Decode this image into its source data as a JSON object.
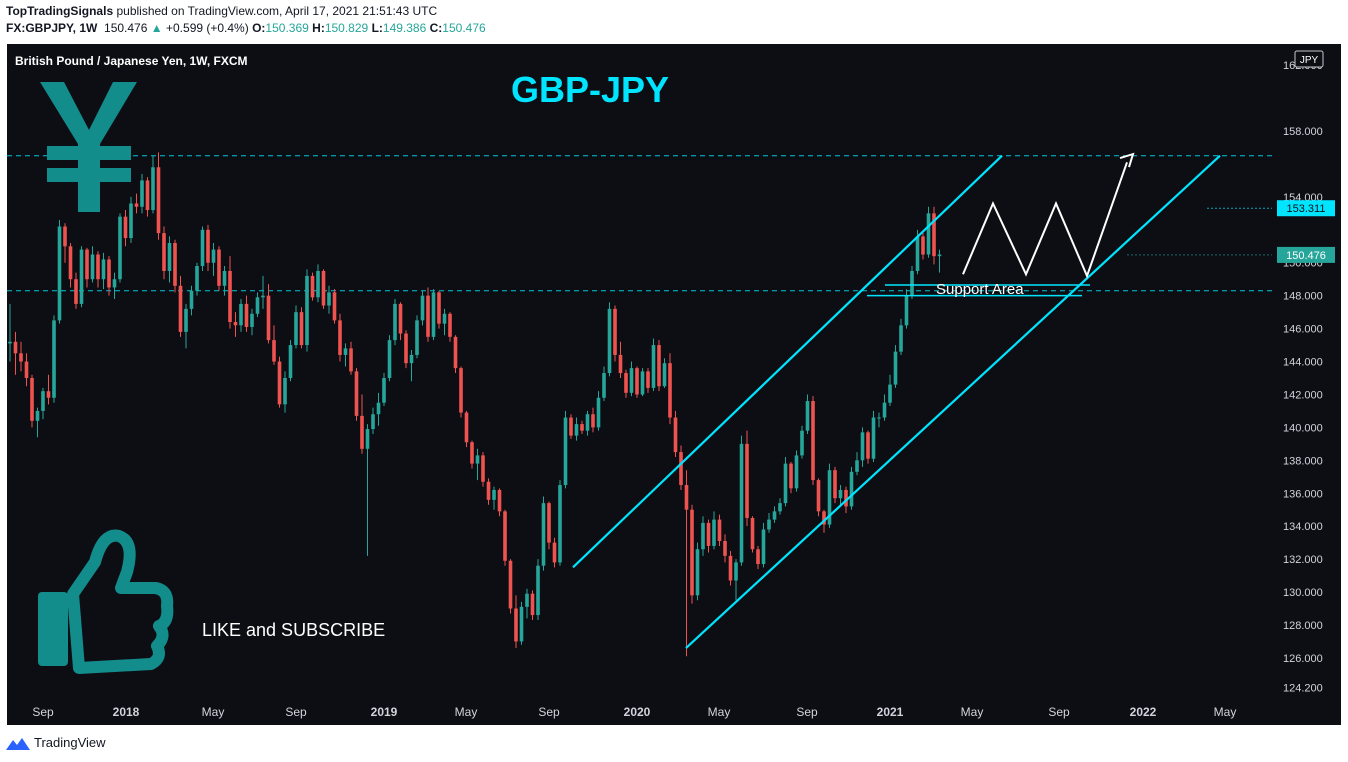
{
  "header": {
    "author": "TopTradingSignals",
    "published_text": "published on TradingView.com, April 17, 2021 21:51:43 UTC",
    "symbol": "FX:GBPJPY, 1W",
    "last": "150.476",
    "change": "+0.599 (+0.4%)",
    "open_label": "O:",
    "open": "150.369",
    "high_label": "H:",
    "high": "150.829",
    "low_label": "L:",
    "low": "149.386",
    "close_label": "C:",
    "close": "150.476"
  },
  "chart_data": {
    "type": "candlestick",
    "title": "GBP-JPY",
    "instrument": "British Pound / Japanese Yen, 1W, FXCM",
    "currency_badge": "JPY",
    "ylim": [
      123.2,
      162.8
    ],
    "x_tick_labels": [
      "Sep",
      "2018",
      "May",
      "Sep",
      "2019",
      "May",
      "Sep",
      "2020",
      "May",
      "Sep",
      "2021",
      "May",
      "Sep",
      "2022",
      "May"
    ],
    "y_tick_labels": [
      "162.000",
      "158.000",
      "154.000",
      "150.000",
      "148.000",
      "146.000",
      "144.000",
      "142.000",
      "140.000",
      "138.000",
      "136.000",
      "134.000",
      "132.000",
      "130.000",
      "128.000",
      "126.000",
      "124.200"
    ],
    "price_labels": [
      {
        "value": "153.311",
        "color": "#00e5ff"
      },
      {
        "value": "150.476",
        "color": "#26a69a"
      }
    ],
    "horizontal_levels": [
      156.5,
      148.3
    ],
    "annotations": {
      "support_label": "Support Area",
      "cta": "LIKE and SUBSCRIBE"
    },
    "colors": {
      "up": "#26a69a",
      "down": "#ef5350",
      "channel": "#00e5ff",
      "level": "#00e5ff",
      "title": "#00e5ff",
      "icon": "#138c8c",
      "projection": "#ffffff",
      "background": "#0d0e14"
    },
    "candles": [
      [
        145.1,
        147.5,
        144.0,
        145.2
      ],
      [
        145.2,
        145.8,
        143.2,
        144.5
      ],
      [
        144.5,
        145.2,
        143.4,
        144.0
      ],
      [
        144.0,
        144.5,
        142.5,
        143.0
      ],
      [
        143.0,
        143.2,
        140.0,
        140.4
      ],
      [
        140.4,
        141.2,
        139.4,
        141.0
      ],
      [
        141.0,
        142.4,
        140.5,
        142.2
      ],
      [
        142.2,
        143.2,
        141.4,
        141.8
      ],
      [
        141.8,
        146.8,
        141.5,
        146.5
      ],
      [
        146.5,
        152.6,
        146.3,
        152.2
      ],
      [
        152.2,
        152.4,
        150.0,
        151.0
      ],
      [
        151.0,
        151.2,
        148.5,
        149.0
      ],
      [
        149.0,
        149.4,
        147.2,
        147.5
      ],
      [
        147.5,
        151.0,
        147.3,
        150.8
      ],
      [
        150.8,
        150.9,
        148.5,
        149.0
      ],
      [
        149.0,
        151.0,
        148.8,
        150.5
      ],
      [
        150.5,
        150.7,
        148.5,
        149.0
      ],
      [
        149.0,
        150.6,
        148.4,
        150.2
      ],
      [
        150.2,
        150.4,
        148.0,
        148.5
      ],
      [
        148.5,
        149.4,
        147.8,
        149.0
      ],
      [
        149.0,
        153.0,
        148.8,
        152.8
      ],
      [
        152.8,
        153.2,
        151.0,
        151.5
      ],
      [
        151.5,
        154.0,
        151.2,
        153.6
      ],
      [
        153.6,
        154.2,
        153.0,
        153.4
      ],
      [
        153.4,
        155.4,
        153.0,
        155.0
      ],
      [
        155.0,
        155.2,
        152.8,
        153.2
      ],
      [
        153.2,
        156.5,
        153.0,
        155.8
      ],
      [
        155.8,
        156.7,
        151.4,
        151.8
      ],
      [
        151.8,
        152.2,
        149.0,
        149.5
      ],
      [
        149.5,
        151.6,
        148.8,
        151.2
      ],
      [
        151.2,
        151.4,
        148.2,
        148.6
      ],
      [
        148.6,
        149.2,
        145.5,
        145.8
      ],
      [
        145.8,
        147.5,
        144.8,
        147.2
      ],
      [
        147.2,
        148.6,
        146.8,
        148.3
      ],
      [
        148.3,
        150.0,
        148.0,
        149.8
      ],
      [
        149.8,
        152.2,
        149.5,
        152.0
      ],
      [
        152.0,
        152.3,
        149.5,
        150.0
      ],
      [
        150.0,
        151.2,
        149.2,
        150.8
      ],
      [
        150.8,
        151.0,
        148.3,
        148.6
      ],
      [
        148.6,
        149.8,
        148.0,
        149.5
      ],
      [
        149.5,
        150.4,
        146.0,
        146.4
      ],
      [
        146.4,
        147.0,
        145.5,
        146.2
      ],
      [
        146.2,
        147.8,
        145.8,
        147.5
      ],
      [
        147.5,
        148.0,
        145.8,
        146.1
      ],
      [
        146.1,
        147.2,
        145.6,
        146.9
      ],
      [
        146.9,
        148.2,
        146.7,
        147.9
      ],
      [
        147.9,
        149.2,
        147.2,
        148.0
      ],
      [
        148.0,
        148.7,
        145.1,
        145.3
      ],
      [
        145.3,
        146.2,
        143.8,
        144.0
      ],
      [
        144.0,
        144.3,
        141.2,
        141.4
      ],
      [
        141.4,
        143.4,
        140.9,
        143.0
      ],
      [
        143.0,
        145.3,
        142.8,
        145.0
      ],
      [
        145.0,
        147.4,
        144.8,
        147.0
      ],
      [
        147.0,
        147.3,
        144.8,
        145.0
      ],
      [
        145.0,
        149.6,
        144.6,
        149.2
      ],
      [
        149.2,
        149.4,
        147.7,
        147.9
      ],
      [
        147.9,
        149.9,
        147.6,
        149.5
      ],
      [
        149.5,
        149.6,
        147.2,
        147.4
      ],
      [
        147.4,
        148.6,
        146.9,
        148.2
      ],
      [
        148.2,
        148.4,
        146.3,
        146.5
      ],
      [
        146.5,
        146.9,
        144.0,
        144.4
      ],
      [
        144.4,
        145.1,
        143.7,
        144.8
      ],
      [
        144.8,
        145.2,
        143.2,
        143.4
      ],
      [
        143.4,
        143.6,
        140.4,
        140.7
      ],
      [
        140.7,
        142.0,
        138.4,
        138.7
      ],
      [
        138.7,
        140.2,
        132.2,
        139.9
      ],
      [
        139.9,
        141.2,
        139.6,
        140.8
      ],
      [
        140.8,
        142.1,
        140.1,
        141.5
      ],
      [
        141.5,
        143.3,
        141.3,
        143.0
      ],
      [
        143.0,
        145.6,
        142.8,
        145.3
      ],
      [
        145.3,
        147.8,
        145.0,
        147.5
      ],
      [
        147.5,
        147.6,
        145.3,
        145.7
      ],
      [
        145.7,
        145.9,
        143.6,
        143.9
      ],
      [
        143.9,
        144.7,
        142.8,
        144.4
      ],
      [
        144.4,
        146.8,
        144.2,
        146.5
      ],
      [
        146.5,
        148.3,
        146.2,
        148.0
      ],
      [
        148.0,
        148.5,
        145.2,
        145.5
      ],
      [
        145.5,
        148.4,
        145.3,
        148.2
      ],
      [
        148.2,
        148.3,
        146.0,
        146.3
      ],
      [
        146.3,
        147.2,
        145.6,
        146.9
      ],
      [
        146.9,
        147.0,
        145.2,
        145.5
      ],
      [
        145.5,
        145.6,
        143.3,
        143.6
      ],
      [
        143.6,
        143.7,
        140.6,
        140.9
      ],
      [
        140.9,
        141.0,
        138.8,
        139.1
      ],
      [
        139.1,
        139.2,
        137.5,
        137.8
      ],
      [
        137.8,
        138.7,
        136.8,
        138.3
      ],
      [
        138.3,
        138.5,
        136.4,
        136.7
      ],
      [
        136.7,
        136.9,
        135.3,
        135.6
      ],
      [
        135.6,
        136.4,
        135.0,
        136.2
      ],
      [
        136.2,
        136.3,
        134.6,
        134.9
      ],
      [
        134.9,
        135.0,
        131.6,
        131.9
      ],
      [
        131.9,
        132.0,
        128.7,
        129.0
      ],
      [
        129.0,
        129.8,
        126.6,
        127.0
      ],
      [
        127.0,
        129.4,
        126.8,
        129.1
      ],
      [
        129.1,
        130.2,
        128.4,
        129.9
      ],
      [
        129.9,
        130.1,
        128.3,
        128.6
      ],
      [
        128.6,
        132.0,
        128.3,
        131.6
      ],
      [
        131.6,
        135.8,
        131.3,
        135.4
      ],
      [
        135.4,
        135.5,
        132.6,
        133.0
      ],
      [
        133.0,
        133.3,
        131.5,
        131.8
      ],
      [
        131.8,
        136.8,
        131.6,
        136.5
      ],
      [
        136.5,
        141.0,
        136.3,
        140.6
      ],
      [
        140.6,
        140.8,
        139.3,
        139.5
      ],
      [
        139.5,
        140.6,
        139.2,
        140.2
      ],
      [
        140.2,
        140.4,
        139.6,
        139.8
      ],
      [
        139.8,
        141.0,
        139.5,
        140.8
      ],
      [
        140.8,
        141.2,
        139.7,
        140.0
      ],
      [
        140.0,
        142.2,
        139.8,
        141.8
      ],
      [
        141.8,
        143.7,
        141.6,
        143.3
      ],
      [
        143.3,
        147.6,
        143.1,
        147.2
      ],
      [
        147.2,
        147.4,
        144.0,
        144.4
      ],
      [
        144.4,
        145.2,
        143.0,
        143.3
      ],
      [
        143.3,
        143.5,
        141.8,
        142.1
      ],
      [
        142.1,
        144.0,
        141.9,
        143.6
      ],
      [
        143.6,
        143.7,
        141.8,
        142.0
      ],
      [
        142.0,
        143.6,
        141.9,
        143.4
      ],
      [
        143.4,
        143.6,
        142.1,
        142.4
      ],
      [
        142.4,
        145.4,
        142.2,
        145.0
      ],
      [
        145.0,
        145.3,
        142.2,
        142.5
      ],
      [
        142.5,
        144.2,
        142.4,
        143.9
      ],
      [
        143.9,
        144.5,
        140.2,
        140.6
      ],
      [
        140.6,
        141.0,
        138.2,
        138.5
      ],
      [
        138.5,
        138.9,
        136.2,
        136.5
      ],
      [
        136.5,
        137.4,
        126.1,
        135.0
      ],
      [
        135.0,
        135.3,
        129.3,
        129.8
      ],
      [
        129.8,
        133.0,
        129.5,
        132.6
      ],
      [
        132.6,
        134.6,
        132.2,
        134.2
      ],
      [
        134.2,
        134.4,
        132.4,
        132.8
      ],
      [
        132.8,
        134.9,
        132.6,
        134.4
      ],
      [
        134.4,
        134.7,
        132.8,
        133.1
      ],
      [
        133.1,
        133.5,
        131.8,
        132.2
      ],
      [
        132.2,
        132.5,
        130.4,
        130.7
      ],
      [
        130.7,
        132.0,
        129.5,
        131.8
      ],
      [
        131.8,
        139.5,
        131.6,
        139.0
      ],
      [
        139.0,
        139.8,
        134.0,
        134.5
      ],
      [
        134.5,
        134.6,
        132.4,
        132.6
      ],
      [
        132.6,
        132.8,
        131.4,
        131.7
      ],
      [
        131.7,
        134.2,
        131.5,
        133.8
      ],
      [
        133.8,
        134.8,
        133.6,
        134.4
      ],
      [
        134.4,
        135.2,
        134.2,
        134.9
      ],
      [
        134.9,
        135.7,
        134.7,
        135.4
      ],
      [
        135.4,
        138.2,
        135.2,
        137.8
      ],
      [
        137.8,
        137.9,
        136.0,
        136.3
      ],
      [
        136.3,
        138.6,
        136.1,
        138.3
      ],
      [
        138.3,
        140.1,
        138.1,
        139.8
      ],
      [
        139.8,
        142.0,
        139.6,
        141.6
      ],
      [
        141.6,
        141.9,
        136.5,
        136.8
      ],
      [
        136.8,
        136.9,
        134.6,
        134.9
      ],
      [
        134.9,
        135.0,
        133.6,
        134.1
      ],
      [
        134.1,
        137.8,
        133.9,
        137.4
      ],
      [
        137.4,
        137.6,
        135.4,
        135.7
      ],
      [
        135.7,
        136.5,
        135.2,
        136.2
      ],
      [
        136.2,
        136.4,
        134.8,
        135.2
      ],
      [
        135.2,
        137.6,
        135.0,
        137.3
      ],
      [
        137.3,
        138.5,
        137.1,
        138.0
      ],
      [
        138.0,
        140.0,
        137.6,
        139.7
      ],
      [
        139.7,
        139.8,
        137.8,
        138.1
      ],
      [
        138.1,
        141.0,
        137.9,
        140.6
      ],
      [
        140.6,
        140.9,
        140.0,
        140.6
      ],
      [
        140.6,
        142.0,
        140.4,
        141.5
      ],
      [
        141.5,
        143.2,
        141.3,
        142.6
      ],
      [
        142.6,
        145.0,
        142.4,
        144.6
      ],
      [
        144.6,
        146.6,
        144.4,
        146.2
      ],
      [
        146.2,
        148.4,
        146.0,
        148.0
      ],
      [
        148.0,
        149.8,
        147.8,
        149.5
      ],
      [
        149.5,
        152.0,
        149.3,
        151.6
      ],
      [
        151.6,
        151.8,
        150.2,
        150.5
      ],
      [
        150.5,
        153.4,
        150.3,
        153.0
      ],
      [
        153.0,
        153.4,
        149.9,
        150.4
      ],
      [
        150.4,
        150.8,
        149.4,
        150.5
      ]
    ]
  }
}
